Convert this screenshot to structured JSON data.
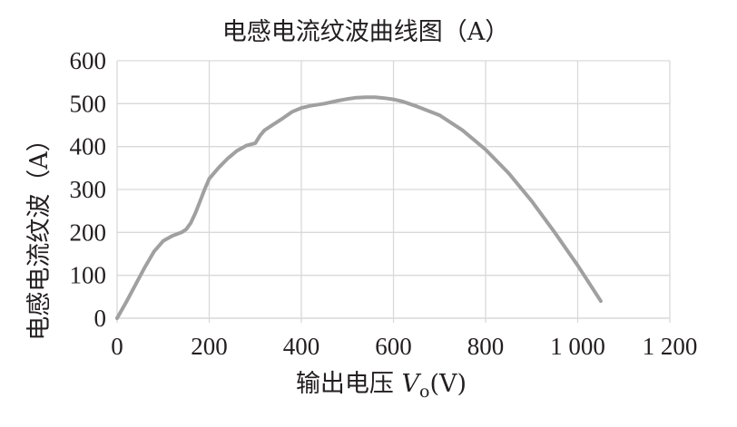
{
  "chart_data": {
    "type": "line",
    "title": "电感电流纹波曲线图（A）",
    "xlabel": "输出电压 Vo(V)",
    "xlabel_parts": {
      "prefix": "输出电压 ",
      "var": "V",
      "sub": "o",
      "suffix": "(V)"
    },
    "ylabel": "电感电流纹波（A）",
    "xlim": [
      0,
      1200
    ],
    "ylim": [
      0,
      600
    ],
    "x_ticks": [
      0,
      200,
      400,
      600,
      800,
      1000,
      1200
    ],
    "x_tick_labels": [
      "0",
      "200",
      "400",
      "600",
      "800",
      "1 000",
      "1 200"
    ],
    "y_ticks": [
      0,
      100,
      200,
      300,
      400,
      500,
      600
    ],
    "y_tick_labels": [
      "0",
      "100",
      "200",
      "300",
      "400",
      "500",
      "600"
    ],
    "grid": true,
    "line_color": "#a0a0a0",
    "grid_color": "#d9d9d9",
    "series": [
      {
        "x": [
          0,
          20,
          40,
          60,
          80,
          100,
          120,
          140,
          150,
          160,
          170,
          180,
          190,
          200,
          220,
          240,
          260,
          280,
          300,
          310,
          320,
          340,
          360,
          380,
          400,
          420,
          450,
          480,
          500,
          520,
          540,
          560,
          580,
          600,
          620,
          650,
          700,
          750,
          800,
          850,
          900,
          950,
          1000,
          1050
        ],
        "y": [
          0,
          38,
          78,
          118,
          155,
          180,
          192,
          200,
          207,
          222,
          245,
          272,
          300,
          325,
          350,
          372,
          390,
          402,
          408,
          425,
          438,
          452,
          466,
          481,
          490,
          495,
          500,
          507,
          511,
          514,
          515,
          515,
          513,
          510,
          505,
          494,
          473,
          438,
          393,
          338,
          273,
          200,
          123,
          40
        ]
      }
    ]
  }
}
